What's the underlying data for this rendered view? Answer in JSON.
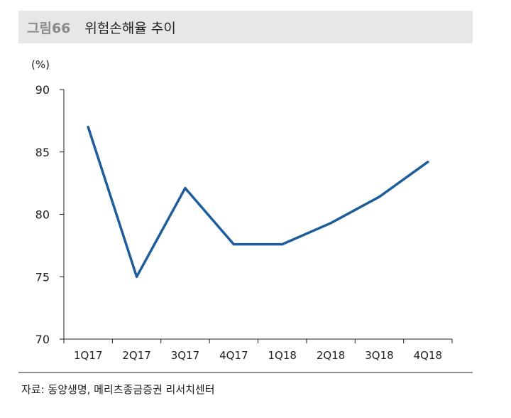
{
  "header": {
    "label": "그림66",
    "title": "위험손해율 추이"
  },
  "unit": "(%)",
  "source": "자료: 동양생명, 메리츠종금증권 리서치센터",
  "chart_data": {
    "type": "line",
    "title": "위험손해율 추이",
    "ylabel": "(%)",
    "xlabel": "",
    "categories": [
      "1Q17",
      "2Q17",
      "3Q17",
      "4Q17",
      "1Q18",
      "2Q18",
      "3Q18",
      "4Q18"
    ],
    "series": [
      {
        "values": [
          87.0,
          75.0,
          82.1,
          77.6,
          77.6,
          79.3,
          81.4,
          84.2
        ]
      }
    ],
    "ylim": [
      70,
      90
    ],
    "yticks": [
      70,
      75,
      80,
      85,
      90
    ],
    "grid": false,
    "line_color": "#1d5d9b",
    "axis_color": "#222222"
  }
}
